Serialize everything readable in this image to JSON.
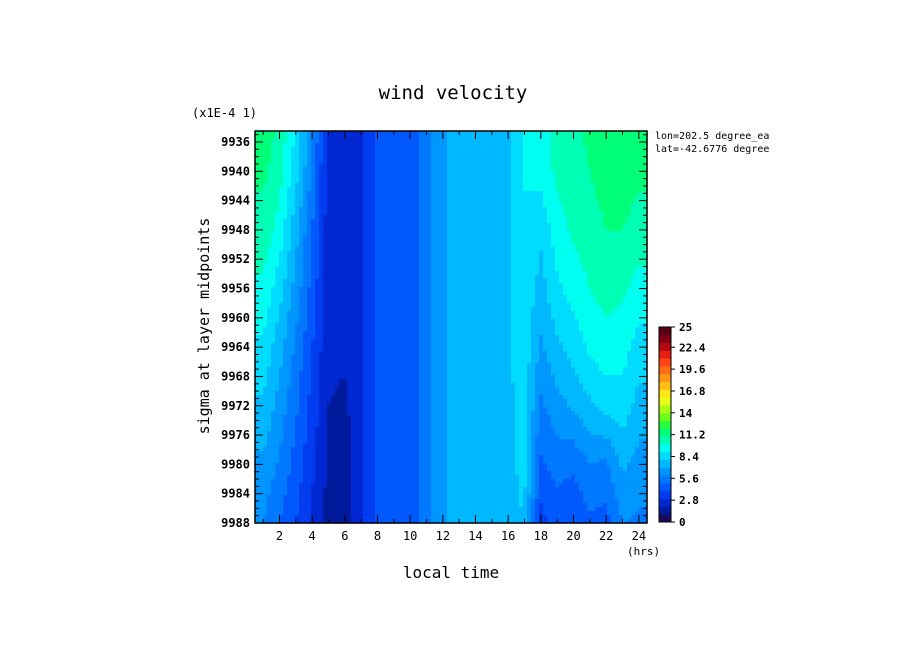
{
  "chart_data": {
    "type": "heatmap",
    "title": "wind velocity",
    "xlabel": "local time",
    "ylabel": "sigma at layer midpoints",
    "y_scale_note": "(x1E-4 1)",
    "x_unit": "(hrs)",
    "annotations": [
      "lon=202.5 degree_ea",
      "lat=-42.6776 degree"
    ],
    "x_ticks": [
      2,
      4,
      6,
      8,
      10,
      12,
      14,
      16,
      18,
      20,
      22,
      24
    ],
    "x_tick_labels": [
      "2",
      "4",
      "6",
      "8",
      "10",
      "12",
      "14",
      "16",
      "18",
      "20",
      "22",
      "24"
    ],
    "xlim": [
      0.5,
      24.5
    ],
    "y_ticks": [
      9936,
      9940,
      9944,
      9948,
      9952,
      9956,
      9960,
      9964,
      9968,
      9972,
      9976,
      9980,
      9984,
      9988
    ],
    "y_tick_labels": [
      "9936",
      "9940",
      "9944",
      "9948",
      "9952",
      "9956",
      "9960",
      "9964",
      "9968",
      "9972",
      "9976",
      "9980",
      "9984",
      "9988"
    ],
    "ylim": [
      9934.5,
      9988
    ],
    "colorbar": {
      "min": 0,
      "max": 25,
      "tick_labels": [
        "25",
        "22.4",
        "19.6",
        "16.8",
        "14",
        "11.2",
        "8.4",
        "5.6",
        "2.8",
        "0"
      ],
      "tick_values": [
        25,
        22.4,
        19.6,
        16.8,
        14,
        11.2,
        8.4,
        5.6,
        2.8,
        0
      ],
      "colors": [
        "#1e0a5a",
        "#001a9c",
        "#0028d2",
        "#003cf0",
        "#0058ff",
        "#0078ff",
        "#0096ff",
        "#00b8ff",
        "#00dcff",
        "#00fff0",
        "#00ffb4",
        "#00ff78",
        "#28ff3c",
        "#6eff1e",
        "#aaff14",
        "#e6ff14",
        "#ffe614",
        "#ffbe14",
        "#ff9614",
        "#ff6e14",
        "#ff4614",
        "#e61e14",
        "#b40a14",
        "#820014",
        "#5a0014"
      ]
    },
    "x": [
      1,
      2,
      3,
      4,
      5,
      6,
      7,
      8,
      9,
      10,
      11,
      12,
      13,
      14,
      15,
      16,
      17,
      18,
      19,
      20,
      21,
      22,
      23,
      24
    ],
    "y": [
      9934.5,
      9940,
      9948,
      9956,
      9964,
      9972,
      9980,
      9988
    ],
    "z": [
      [
        11.5,
        10.8,
        8.8,
        6.2,
        2.4,
        2.2,
        2.8,
        4.4,
        4.6,
        4.4,
        5.8,
        6.8,
        7.8,
        7.8,
        7.6,
        7.8,
        9.0,
        9.6,
        10.3,
        10.8,
        11.2,
        11.6,
        11.8,
        11.4
      ],
      [
        11.2,
        10.4,
        8.4,
        5.8,
        2.4,
        2.2,
        2.8,
        4.4,
        4.6,
        4.4,
        5.8,
        6.8,
        7.8,
        7.8,
        7.6,
        7.8,
        9.0,
        9.4,
        10.2,
        10.6,
        11.0,
        11.4,
        11.6,
        11.2
      ],
      [
        10.6,
        9.6,
        7.4,
        5.0,
        2.4,
        2.2,
        2.8,
        4.4,
        4.6,
        4.4,
        5.8,
        6.8,
        7.8,
        7.8,
        7.6,
        7.8,
        9.0,
        8.2,
        9.6,
        10.2,
        10.6,
        11.0,
        11.0,
        10.6
      ],
      [
        9.8,
        8.4,
        6.6,
        4.6,
        2.4,
        2.2,
        2.8,
        4.4,
        4.6,
        4.4,
        5.8,
        6.8,
        7.8,
        7.8,
        7.6,
        7.8,
        8.8,
        7.6,
        8.8,
        9.4,
        10.0,
        10.4,
        10.2,
        9.6
      ],
      [
        8.8,
        7.4,
        5.8,
        4.0,
        2.2,
        2.2,
        2.8,
        4.4,
        4.6,
        4.4,
        5.8,
        6.8,
        7.8,
        7.8,
        7.6,
        7.8,
        8.6,
        6.8,
        7.8,
        8.4,
        9.2,
        9.6,
        9.4,
        8.6
      ],
      [
        7.8,
        6.6,
        5.2,
        3.6,
        2.0,
        1.8,
        2.8,
        4.4,
        4.6,
        4.4,
        5.8,
        6.8,
        7.8,
        7.8,
        7.6,
        7.8,
        8.4,
        5.8,
        6.6,
        7.2,
        7.8,
        8.4,
        8.6,
        7.6
      ],
      [
        6.8,
        5.8,
        4.6,
        3.2,
        1.8,
        1.4,
        2.8,
        4.4,
        4.6,
        4.4,
        5.8,
        6.8,
        7.8,
        7.8,
        7.6,
        7.8,
        8.2,
        4.8,
        5.4,
        5.2,
        6.0,
        5.8,
        7.2,
        6.6
      ],
      [
        6.0,
        5.0,
        4.0,
        2.8,
        1.6,
        1.2,
        2.8,
        4.4,
        4.6,
        4.4,
        5.8,
        6.8,
        7.8,
        7.8,
        7.6,
        7.8,
        8.0,
        3.6,
        4.4,
        4.0,
        4.8,
        4.6,
        6.0,
        5.8
      ]
    ]
  }
}
